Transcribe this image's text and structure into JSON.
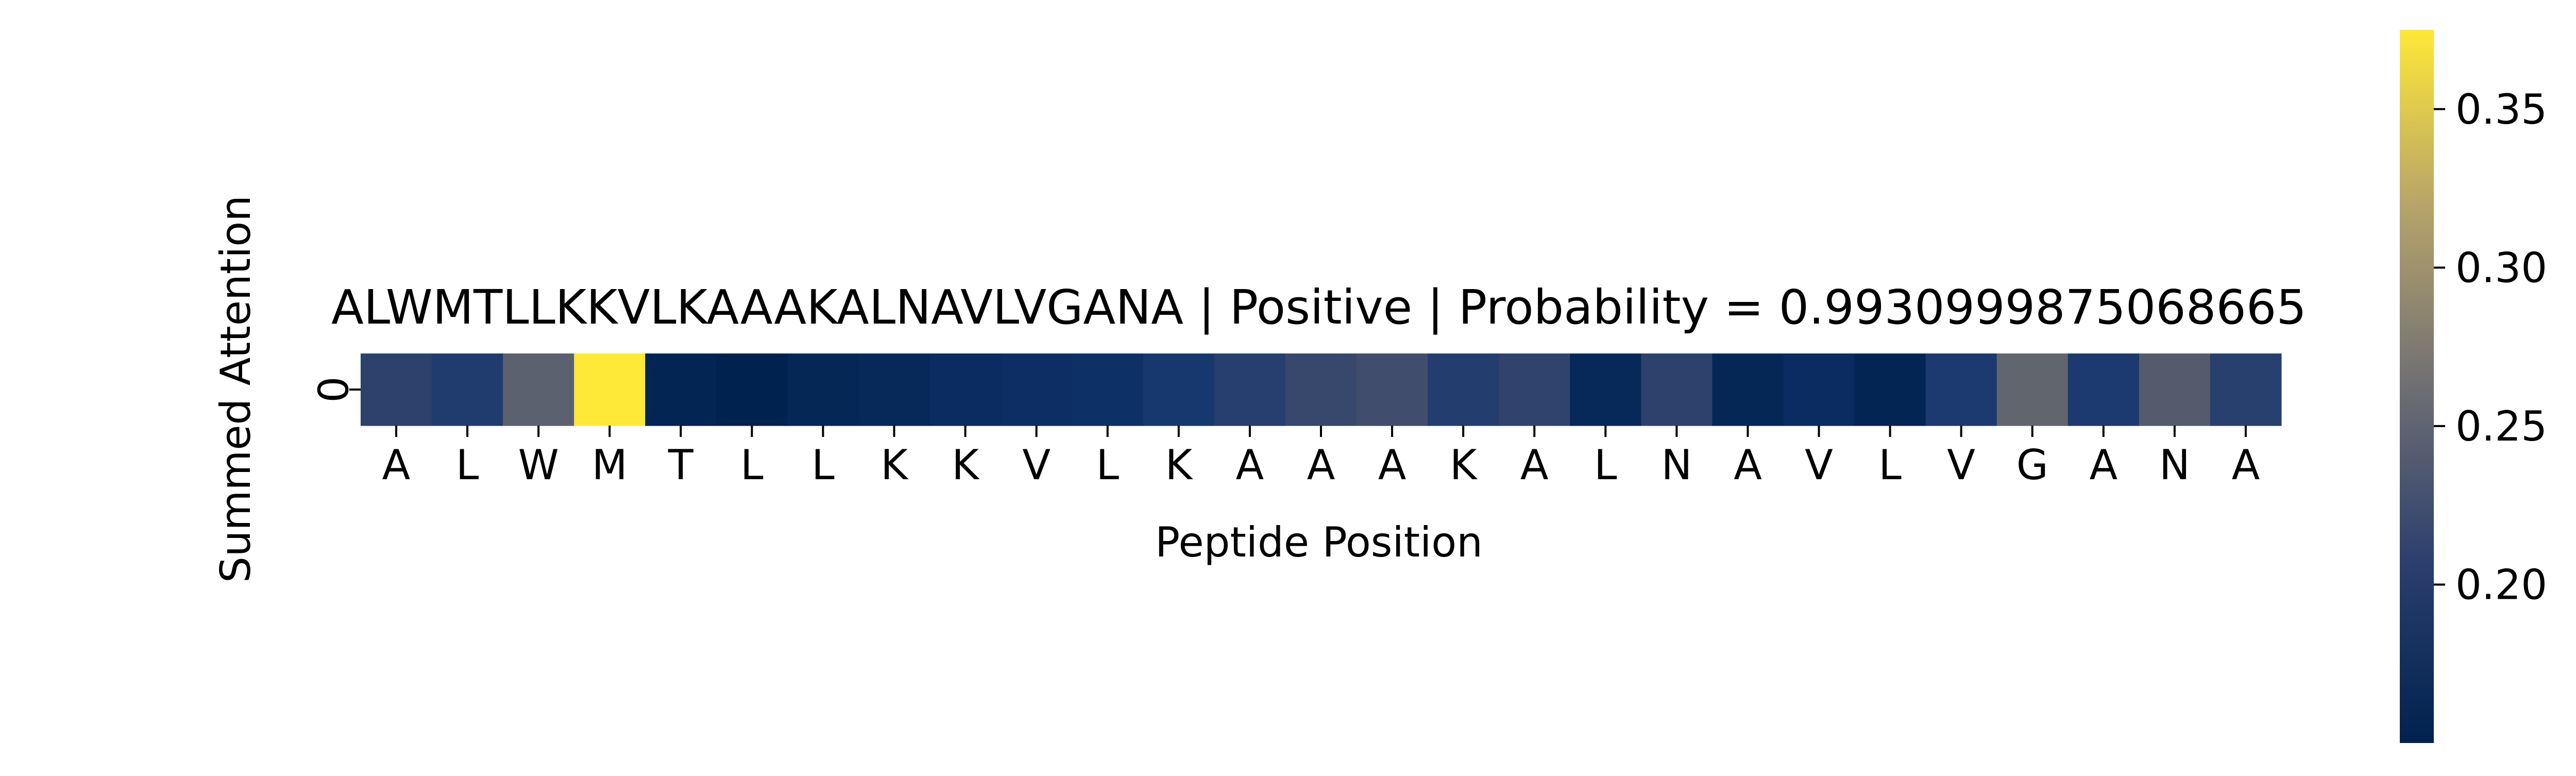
{
  "chart_data": {
    "type": "heatmap",
    "title": "ALWMTLLKKVLKAAAKALNAVLVGANA | Positive | Probability = 0.9930999875068665",
    "xlabel": "Peptide Position",
    "ylabel": "Summed Attention",
    "x_categories": [
      "A",
      "L",
      "W",
      "M",
      "T",
      "L",
      "L",
      "K",
      "K",
      "V",
      "L",
      "K",
      "A",
      "A",
      "A",
      "K",
      "A",
      "L",
      "N",
      "A",
      "V",
      "L",
      "V",
      "G",
      "A",
      "N",
      "A"
    ],
    "y_categories": [
      "0"
    ],
    "values": [
      [
        0.205,
        0.195,
        0.245,
        0.375,
        0.155,
        0.15,
        0.158,
        0.162,
        0.168,
        0.172,
        0.175,
        0.188,
        0.2,
        0.215,
        0.222,
        0.198,
        0.208,
        0.162,
        0.205,
        0.158,
        0.168,
        0.155,
        0.192,
        0.25,
        0.192,
        0.238,
        0.202
      ]
    ],
    "colormap": "cividis",
    "vmin": 0.15,
    "vmax": 0.375,
    "colorbar_ticks": [
      0.2,
      0.25,
      0.3,
      0.35
    ],
    "colorbar_tick_labels": [
      "0.20",
      "0.25",
      "0.30",
      "0.35"
    ],
    "grid": false,
    "legend": "colorbar-right"
  }
}
